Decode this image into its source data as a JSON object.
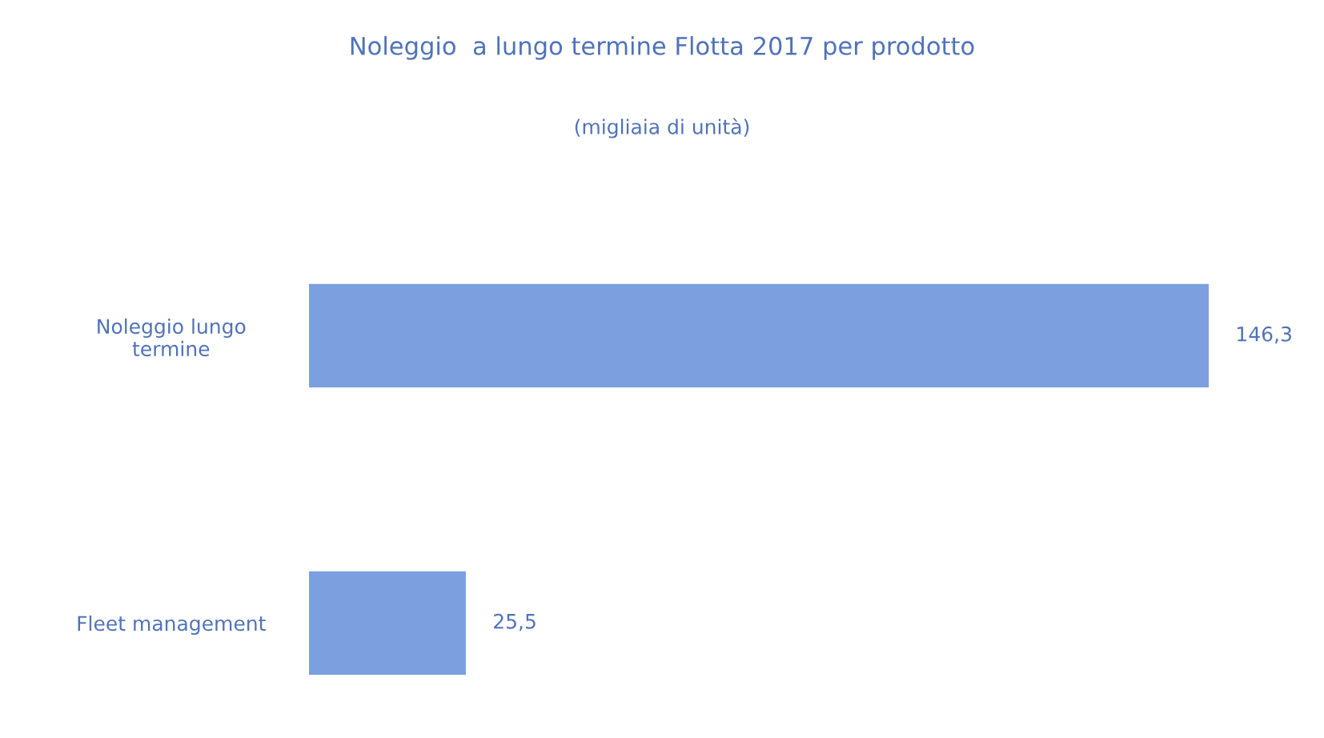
{
  "chart_data": {
    "type": "bar",
    "orientation": "horizontal",
    "title": "Noleggio  a lungo termine Flotta 2017 per prodotto",
    "subtitle": "(migliaia di unità)",
    "categories": [
      "Noleggio lungo\ntermine",
      "Fleet management"
    ],
    "values": [
      146.3,
      25.5
    ],
    "value_labels": [
      "146,3",
      "25,5"
    ],
    "color": "#7b9fdf",
    "grid": false,
    "legend": false
  }
}
